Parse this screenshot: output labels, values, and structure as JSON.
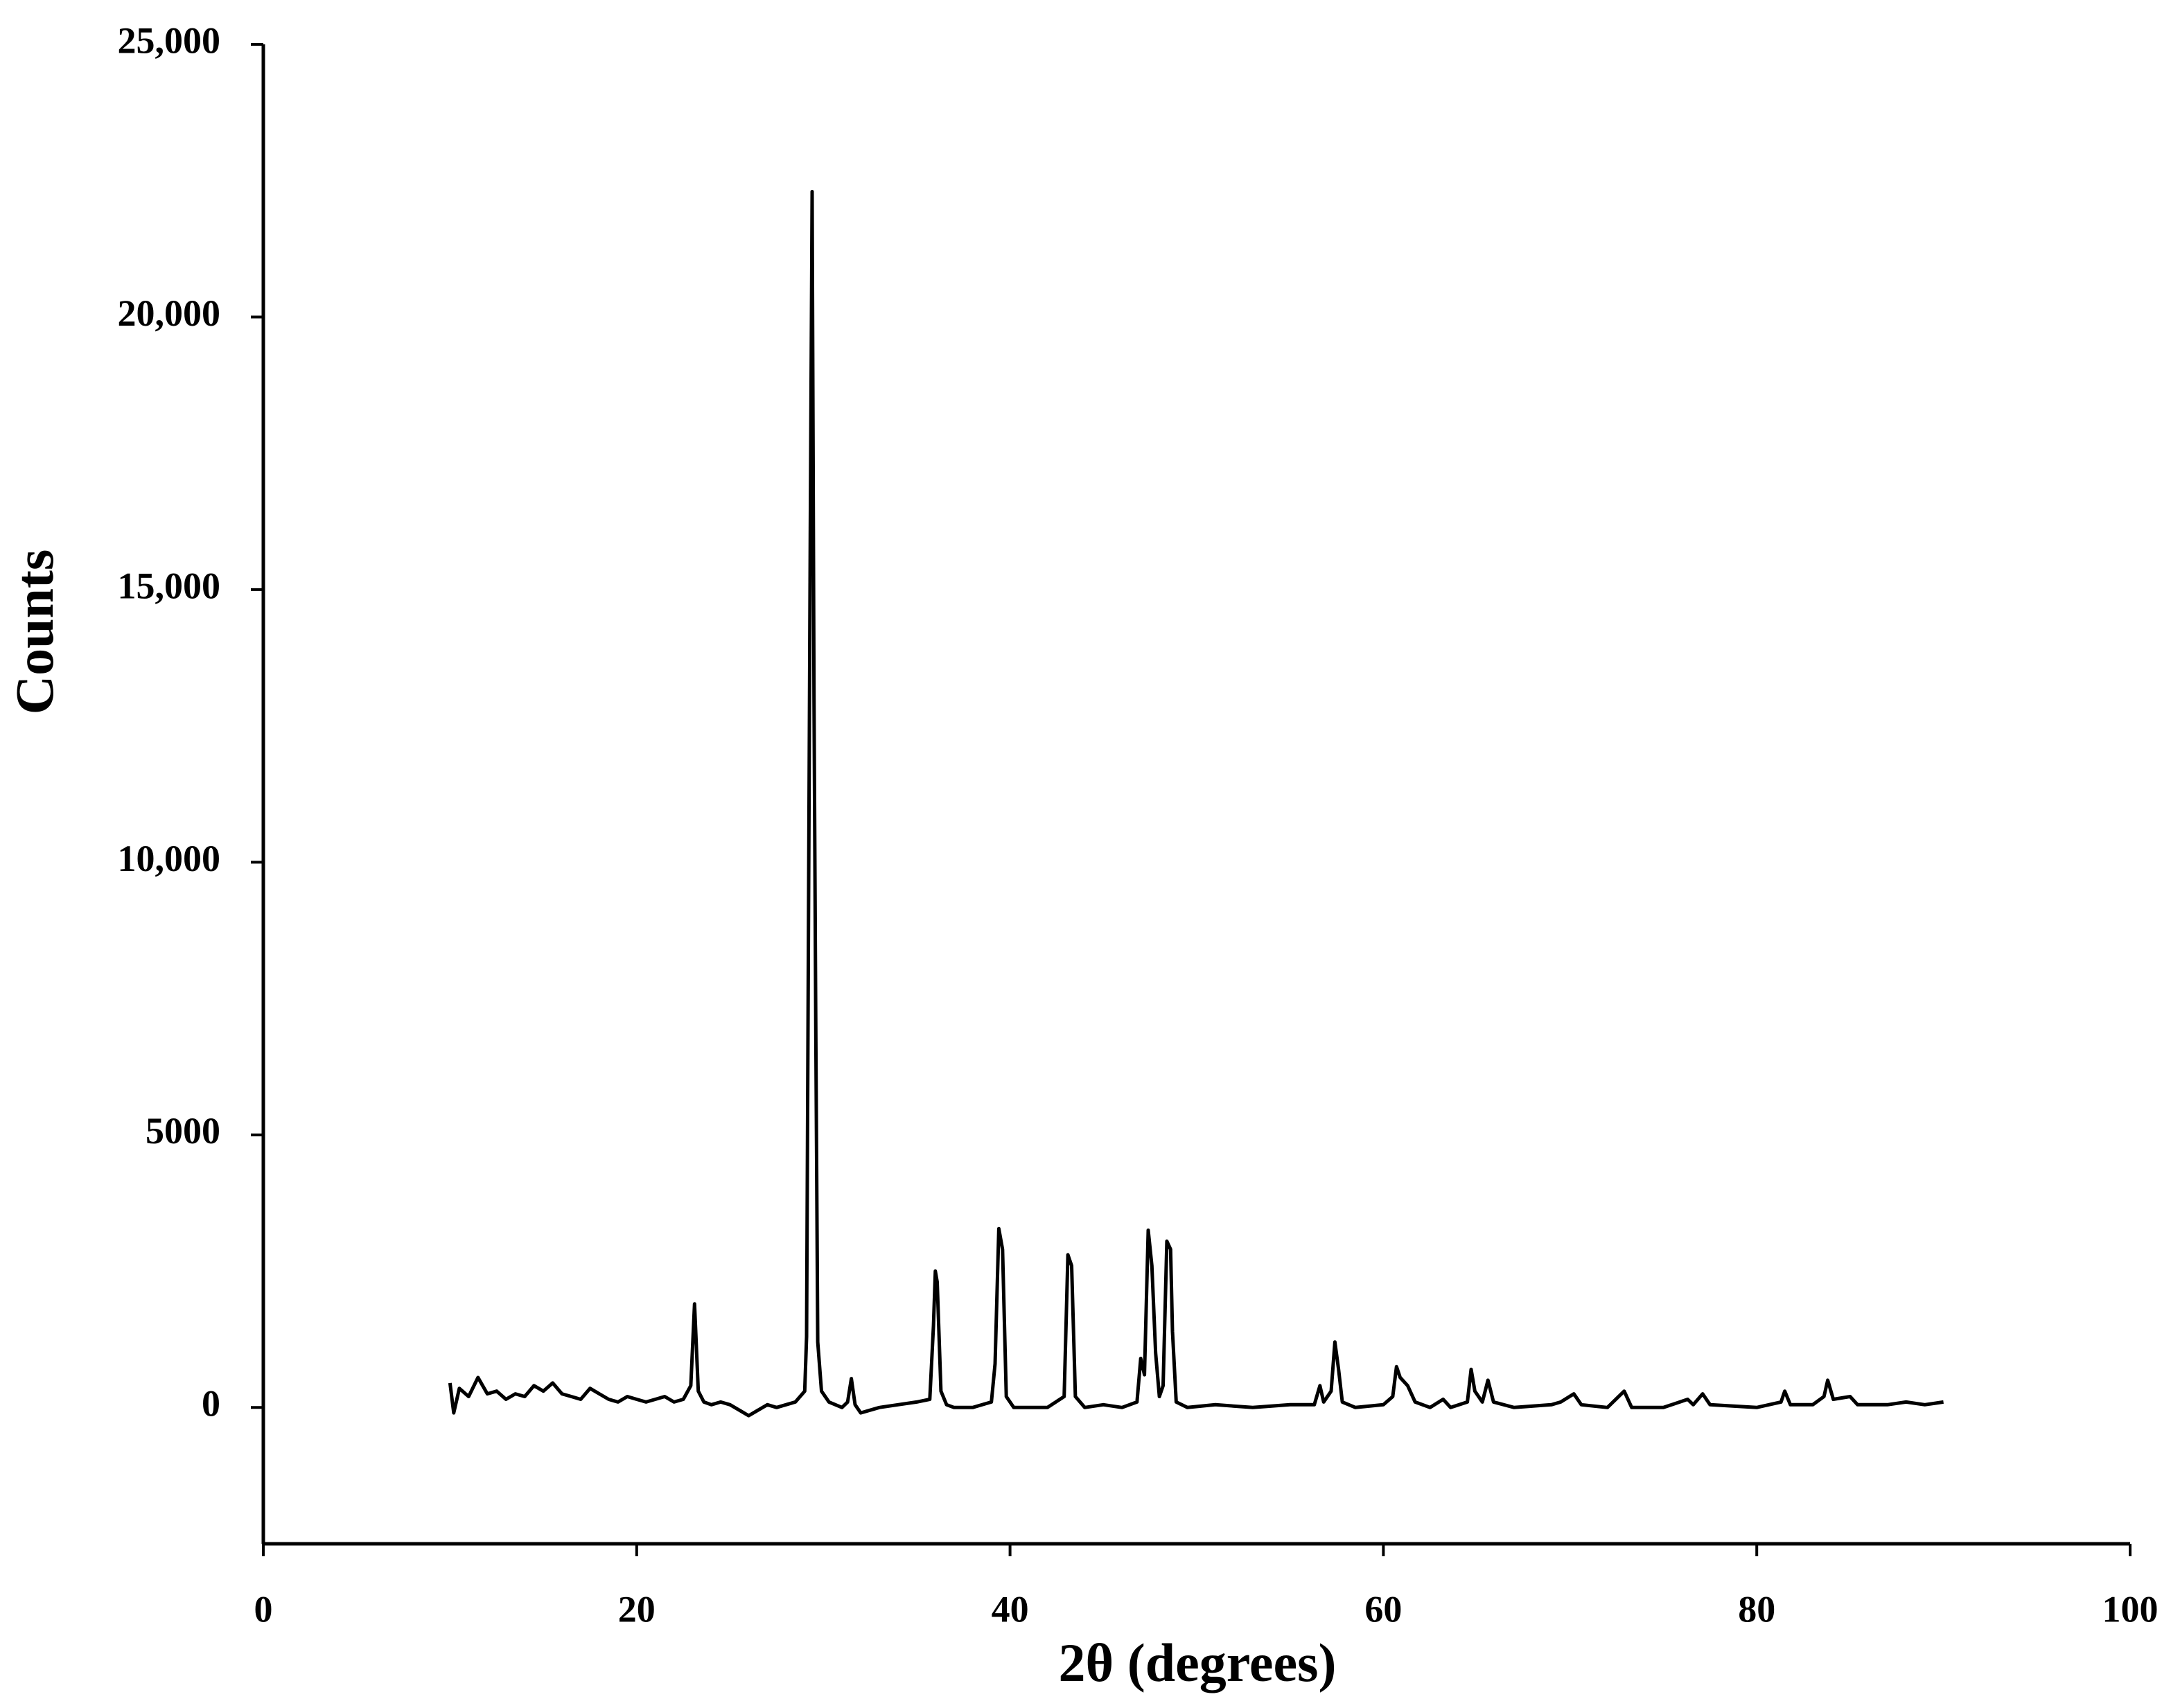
{
  "chart_data": {
    "type": "line",
    "xlabel": "2θ (degrees)",
    "ylabel": "Counts",
    "color": "#000000",
    "xlim": [
      0,
      100
    ],
    "xticks": [
      0,
      20,
      40,
      60,
      80,
      100
    ],
    "ylim": [
      -2500,
      25000
    ],
    "yticks": [
      0,
      5000,
      {
        "value": 10000,
        "label": "10,000"
      },
      {
        "value": 15000,
        "label": "15,000"
      },
      {
        "value": 20000,
        "label": "20,000"
      },
      {
        "value": 25000,
        "label": "25,000"
      }
    ],
    "x": [
      10,
      10.2,
      10.5,
      11,
      11.5,
      12,
      12.5,
      13,
      13.5,
      14,
      14.5,
      15,
      15.5,
      16,
      16.5,
      17,
      17.5,
      18,
      18.5,
      19,
      19.5,
      20,
      20.5,
      21,
      21.5,
      22,
      22.5,
      22.9,
      23.1,
      23.3,
      23.6,
      24,
      24.5,
      25,
      25.5,
      26,
      26.5,
      27,
      27.5,
      28,
      28.5,
      29,
      29.1,
      29.3,
      29.4,
      29.5,
      29.6,
      29.7,
      29.9,
      30.3,
      31,
      31.3,
      31.5,
      31.7,
      32,
      32.5,
      33,
      34,
      35,
      35.7,
      35.9,
      36.0,
      36.1,
      36.3,
      36.6,
      37,
      38,
      39,
      39.2,
      39.4,
      39.6,
      39.8,
      40.2,
      41,
      42,
      42.9,
      43.1,
      43.3,
      43.5,
      44,
      45,
      46,
      46.8,
      47.0,
      47.2,
      47.4,
      47.6,
      47.8,
      48.0,
      48.2,
      48.4,
      48.6,
      48.7,
      48.9,
      49.5,
      51,
      53,
      55,
      56.3,
      56.6,
      56.8,
      57.2,
      57.4,
      57.6,
      57.8,
      58.5,
      60,
      60.5,
      60.7,
      60.9,
      61.3,
      61.7,
      62.5,
      63.2,
      63.6,
      64.5,
      64.7,
      64.9,
      65.3,
      65.6,
      65.9,
      67,
      69,
      69.5,
      70.2,
      70.6,
      72,
      72.9,
      73.3,
      75,
      76.3,
      76.6,
      77.1,
      77.5,
      80,
      81.3,
      81.5,
      81.8,
      83,
      83.6,
      83.8,
      84.1,
      85,
      85.4,
      87,
      88,
      89,
      90
    ],
    "values": [
      450,
      -100,
      350,
      200,
      550,
      250,
      300,
      150,
      250,
      200,
      400,
      300,
      450,
      250,
      200,
      150,
      350,
      250,
      150,
      100,
      200,
      150,
      100,
      150,
      200,
      100,
      150,
      400,
      1900,
      300,
      100,
      50,
      100,
      50,
      -50,
      -150,
      -50,
      50,
      0,
      50,
      100,
      300,
      1300,
      16000,
      22300,
      13000,
      6700,
      1200,
      300,
      100,
      0,
      100,
      530,
      50,
      -100,
      -50,
      0,
      50,
      100,
      150,
      1500,
      2500,
      2300,
      300,
      50,
      0,
      0,
      100,
      800,
      3280,
      2900,
      200,
      0,
      0,
      0,
      200,
      2800,
      2600,
      200,
      0,
      50,
      0,
      100,
      900,
      600,
      3250,
      2600,
      1000,
      200,
      400,
      3050,
      2900,
      1400,
      100,
      0,
      50,
      0,
      50,
      50,
      400,
      100,
      300,
      1200,
      700,
      100,
      0,
      50,
      200,
      750,
      550,
      400,
      100,
      0,
      150,
      0,
      100,
      700,
      300,
      100,
      500,
      100,
      0,
      50,
      100,
      250,
      50,
      0,
      300,
      0,
      0,
      150,
      50,
      250,
      50,
      0,
      100,
      300,
      50,
      50,
      200,
      500,
      150,
      200,
      50,
      50,
      100,
      50,
      100
    ]
  }
}
